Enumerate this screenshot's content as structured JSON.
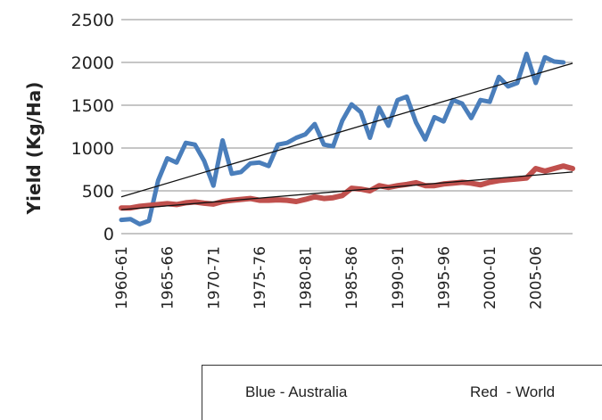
{
  "chart_data": {
    "type": "line",
    "title": "",
    "xlabel": "",
    "ylabel": "Yield (Kg/Ha)",
    "ylim": [
      0,
      2500
    ],
    "yticks": [
      0,
      500,
      1000,
      1500,
      2000,
      2500
    ],
    "grid": "horizontal",
    "xtick_labels": [
      "1960-61",
      "1965-66",
      "1970-71",
      "1975-76",
      "1980-81",
      "1985-86",
      "1990-91",
      "1995-96",
      "2000-01",
      "2005-06"
    ],
    "x_start_year": 1960,
    "series": [
      {
        "color": "#4a7ebb",
        "values": [
          160,
          170,
          110,
          150,
          620,
          880,
          830,
          1060,
          1040,
          850,
          560,
          1090,
          700,
          720,
          820,
          830,
          790,
          1040,
          1060,
          1120,
          1160,
          1280,
          1040,
          1020,
          1320,
          1510,
          1420,
          1120,
          1470,
          1260,
          1560,
          1600,
          1300,
          1100,
          1360,
          1310,
          1560,
          1520,
          1350,
          1560,
          1540,
          1830,
          1720,
          1760,
          2100,
          1760,
          2060,
          2010,
          2000
        ]
      },
      {
        "color": "#c0504d",
        "values": [
          300,
          300,
          320,
          330,
          340,
          350,
          340,
          360,
          370,
          355,
          345,
          375,
          390,
          400,
          410,
          390,
          390,
          395,
          390,
          375,
          400,
          430,
          410,
          420,
          445,
          530,
          520,
          500,
          560,
          540,
          560,
          575,
          595,
          560,
          560,
          580,
          590,
          600,
          590,
          570,
          600,
          620,
          630,
          640,
          650,
          760,
          730,
          760,
          790,
          760
        ]
      }
    ],
    "trendlines": [
      {
        "color": "#111111",
        "from": 430,
        "to": 1990
      },
      {
        "color": "#111111",
        "from": 280,
        "to": 720
      }
    ],
    "legend": {
      "blue": "Blue - Australia",
      "red": "Red  - World"
    }
  }
}
